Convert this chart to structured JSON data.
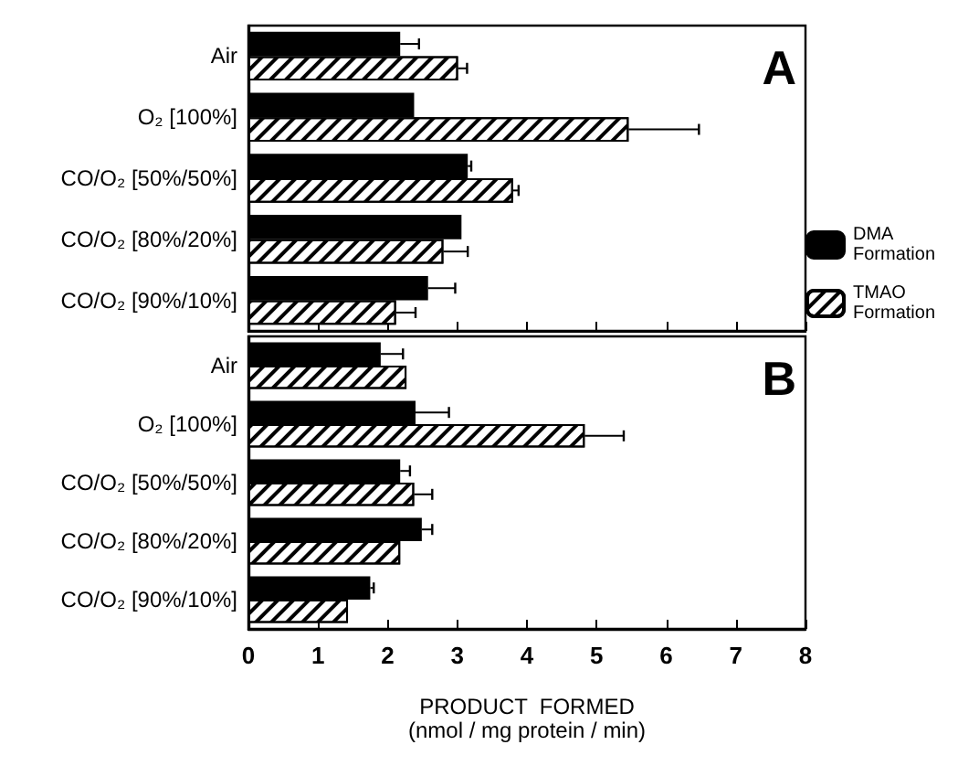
{
  "chart_data": [
    {
      "type": "bar",
      "orientation": "horizontal",
      "annotations": [
        "A"
      ],
      "categories": [
        "Air",
        "O₂ [100%]",
        "CO/O₂ [50%/50%]",
        "CO/O₂ [80%/20%]",
        "CO/O₂ [90%/10%]"
      ],
      "series": [
        {
          "name": "DMA Formation",
          "color": "#000000",
          "values": [
            2.18,
            2.38,
            3.15,
            3.06,
            2.58
          ],
          "errors": [
            [
              2.18,
              2.45
            ],
            null,
            [
              3.15,
              3.2
            ],
            null,
            [
              2.58,
              2.97
            ]
          ]
        },
        {
          "name": "TMAO Formation",
          "color": "#ffffff",
          "values": [
            3.01,
            5.46,
            3.8,
            2.8,
            2.12
          ],
          "errors": [
            [
              3.01,
              3.14
            ],
            [
              5.46,
              6.47
            ],
            [
              3.8,
              3.88
            ],
            [
              2.8,
              3.15
            ],
            [
              2.12,
              2.4
            ]
          ]
        }
      ],
      "xlim": [
        0,
        8
      ],
      "xticks": [
        0,
        1,
        2,
        3,
        4,
        5,
        6,
        7,
        8
      ],
      "tick_labels": "y",
      "grid": false,
      "legend": "right"
    },
    {
      "type": "bar",
      "orientation": "horizontal",
      "annotations": [
        "B"
      ],
      "xlabel": "PRODUCT  FORMED\n(nmol / mg protein / min)",
      "categories": [
        "Air",
        "O₂ [100%]",
        "CO/O₂ [50%/50%]",
        "CO/O₂ [80%/20%]",
        "CO/O₂ [90%/10%]"
      ],
      "series": [
        {
          "name": "DMA Formation",
          "color": "#000000",
          "values": [
            1.9,
            2.4,
            2.18,
            2.49,
            1.75
          ],
          "errors": [
            [
              1.9,
              2.22
            ],
            [
              2.4,
              2.88
            ],
            [
              2.18,
              2.32
            ],
            [
              2.49,
              2.64
            ],
            [
              1.75,
              1.8
            ]
          ]
        },
        {
          "name": "TMAO Formation",
          "color": "#ffffff",
          "values": [
            2.27,
            4.83,
            2.38,
            2.18,
            1.43
          ],
          "errors": [
            null,
            [
              4.83,
              5.39
            ],
            [
              2.38,
              2.64
            ],
            null,
            null
          ]
        }
      ],
      "xlim": [
        0,
        8
      ],
      "xticks": [
        0,
        1,
        2,
        3,
        4,
        5,
        6,
        7,
        8
      ],
      "grid": false,
      "legend": false
    }
  ]
}
